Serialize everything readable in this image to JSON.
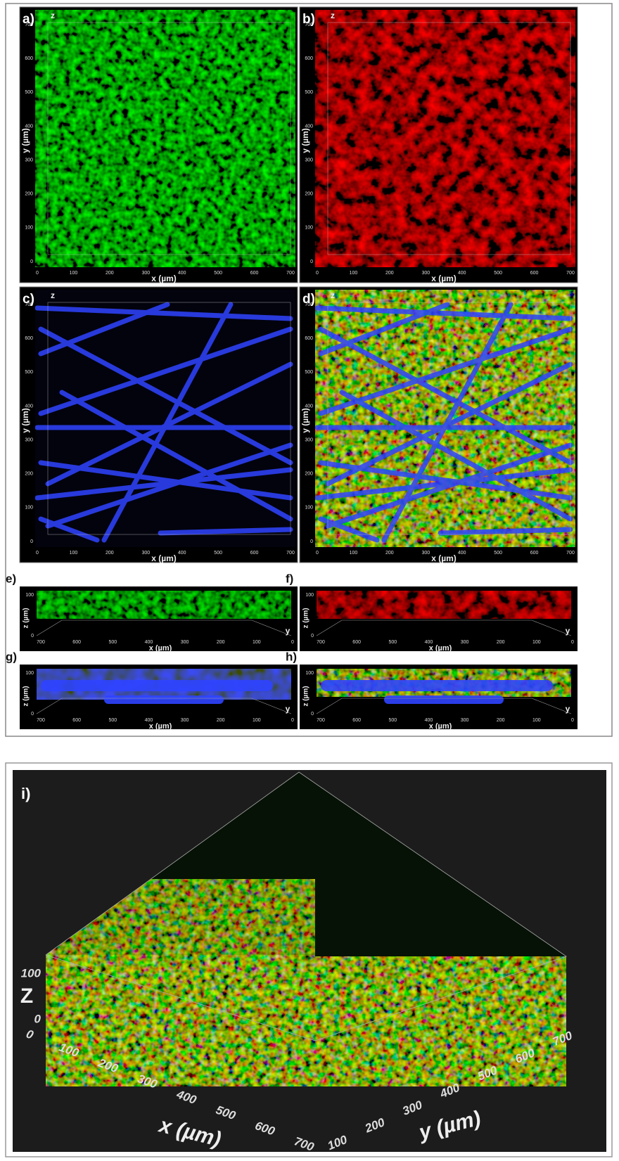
{
  "panels": [
    {
      "label": "a)"
    },
    {
      "label": "b)"
    },
    {
      "label": "c)"
    },
    {
      "label": "d)"
    }
  ],
  "xy_axes": {
    "z_label": "z",
    "x_label": "x (µm)",
    "y_label": "y (µm)",
    "x_ticks": [
      0,
      100,
      200,
      300,
      400,
      500,
      600,
      700
    ],
    "y_ticks": [
      0,
      100,
      200,
      300,
      400,
      500,
      600,
      700
    ]
  },
  "side_panels": [
    {
      "label": "e)"
    },
    {
      "label": "f)"
    },
    {
      "label": "g)"
    },
    {
      "label": "h)"
    }
  ],
  "side_axes": {
    "x_label": "x (µm)",
    "z_label": "z (µm)",
    "y_label": "y",
    "x_ticks": [
      700,
      600,
      500,
      400,
      300,
      200,
      100,
      0
    ],
    "z_ticks": [
      0,
      100
    ]
  },
  "panel_3d": {
    "label": "i)",
    "z_label": "Z",
    "z_ticks": [
      0,
      100
    ],
    "x_ticks": [
      0,
      100,
      200,
      300,
      400,
      500,
      600,
      700
    ],
    "y_ticks": [
      100,
      200,
      300,
      400,
      500,
      600,
      700
    ],
    "x_label": "x (µm)",
    "y_label": "y (µm)"
  }
}
